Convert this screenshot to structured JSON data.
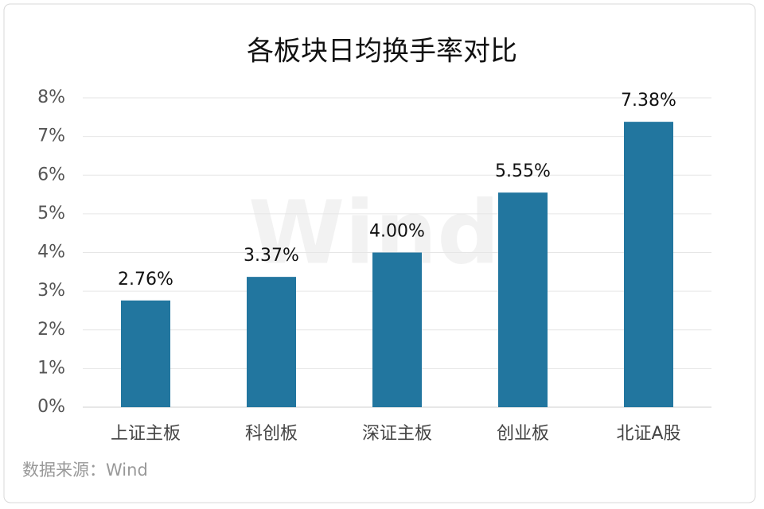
{
  "chart_data": {
    "type": "bar",
    "title": "各板块日均换手率对比",
    "categories": [
      "上证主板",
      "科创板",
      "深证主板",
      "创业板",
      "北证A股"
    ],
    "values": [
      2.76,
      3.37,
      4.0,
      5.55,
      7.38
    ],
    "value_labels": [
      "2.76%",
      "3.37%",
      "4.00%",
      "5.55%",
      "7.38%"
    ],
    "color": "#22769f",
    "ylim": [
      0,
      8
    ],
    "yticks": [
      {
        "value": 0,
        "label": "0%"
      },
      {
        "value": 1,
        "label": "1%"
      },
      {
        "value": 2,
        "label": "2%"
      },
      {
        "value": 3,
        "label": "3%"
      },
      {
        "value": 4,
        "label": "4%"
      },
      {
        "value": 5,
        "label": "5%"
      },
      {
        "value": 6,
        "label": "6%"
      },
      {
        "value": 7,
        "label": "7%"
      },
      {
        "value": 8,
        "label": "8%"
      }
    ],
    "grid": true,
    "source": "数据来源：Wind",
    "watermark": "Wind"
  }
}
